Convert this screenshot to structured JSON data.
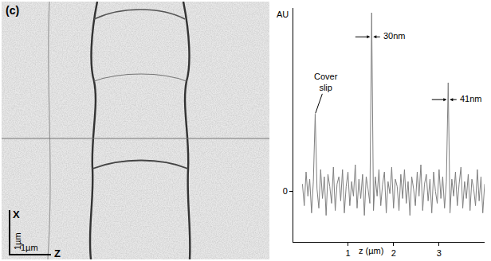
{
  "panel_label": "(c)",
  "image": {
    "x_axis_label": "X",
    "z_axis_label": "Z",
    "scale_bar_x": "1µm",
    "scale_bar_z": "1µm"
  },
  "chart_data": {
    "type": "line",
    "x_label": "z (µm)",
    "y_label": "AU",
    "color": "#808080",
    "grid": false,
    "xlim": [
      -0.2,
      4.0
    ],
    "ylim": [
      -2.1,
      7.6
    ],
    "xticks": [
      1,
      2,
      3
    ],
    "yticks": [
      0
    ],
    "x": [
      0,
      0.04,
      0.08,
      0.12,
      0.16,
      0.2,
      0.24,
      0.28,
      0.32,
      0.36,
      0.4,
      0.44,
      0.48,
      0.52,
      0.56,
      0.6,
      0.64,
      0.68,
      0.72,
      0.76,
      0.8,
      0.84,
      0.88,
      0.92,
      0.96,
      1,
      1.04,
      1.08,
      1.12,
      1.16,
      1.2,
      1.24,
      1.28,
      1.32,
      1.36,
      1.4,
      1.44,
      1.48,
      1.52,
      1.56,
      1.6,
      1.64,
      1.68,
      1.72,
      1.76,
      1.8,
      1.84,
      1.88,
      1.92,
      1.96,
      2,
      2.04,
      2.08,
      2.12,
      2.16,
      2.2,
      2.24,
      2.28,
      2.32,
      2.36,
      2.4,
      2.44,
      2.48,
      2.52,
      2.56,
      2.6,
      2.64,
      2.68,
      2.72,
      2.76,
      2.8,
      2.84,
      2.88,
      2.92,
      2.96,
      3,
      3.04,
      3.08,
      3.12,
      3.16,
      3.2,
      3.24,
      3.28,
      3.32,
      3.36,
      3.4,
      3.44,
      3.48,
      3.52,
      3.56,
      3.6,
      3.64,
      3.68,
      3.72,
      3.76,
      3.8,
      3.84,
      3.88,
      3.92,
      3.96,
      4
    ],
    "values": [
      0.3,
      -0.6,
      0.8,
      -0.2,
      0.5,
      -0.9,
      0.4,
      3.2,
      0.1,
      -0.7,
      0.9,
      -0.3,
      0.6,
      -1.0,
      0.7,
      0.2,
      -0.5,
      1.0,
      -0.8,
      0.3,
      0.6,
      -0.4,
      0.9,
      -0.9,
      0.2,
      0.8,
      -0.6,
      0.4,
      -0.2,
      1.1,
      -0.7,
      0.5,
      -0.3,
      0.7,
      -1.0,
      0.6,
      0.1,
      -0.5,
      7.4,
      -0.8,
      0.6,
      -0.2,
      0.9,
      -0.6,
      0.3,
      0.8,
      -0.9,
      0.4,
      -0.1,
      1.0,
      -0.7,
      0.5,
      0.2,
      -0.8,
      0.7,
      -0.3,
      0.9,
      -0.5,
      0.4,
      -1.0,
      0.6,
      0.1,
      -0.6,
      0.8,
      -0.2,
      1.1,
      -0.8,
      0.3,
      0.7,
      -0.4,
      0.5,
      -0.9,
      0.8,
      0.0,
      -0.5,
      0.9,
      -0.3,
      0.6,
      -0.7,
      0.4,
      4.5,
      -0.9,
      0.5,
      -0.2,
      0.8,
      -0.6,
      0.3,
      1.0,
      -0.7,
      0.4,
      -0.3,
      0.7,
      -0.8,
      0.5,
      0.1,
      -0.6,
      0.9,
      -0.4,
      0.6,
      -0.9,
      0.3
    ],
    "annotations": [
      {
        "text": "Cover slip",
        "x": 0.28,
        "y": 3.2
      },
      {
        "text": "30nm",
        "x": 1.52,
        "y": 6.4
      },
      {
        "text": "41nm",
        "x": 3.2,
        "y": 3.8
      }
    ]
  }
}
